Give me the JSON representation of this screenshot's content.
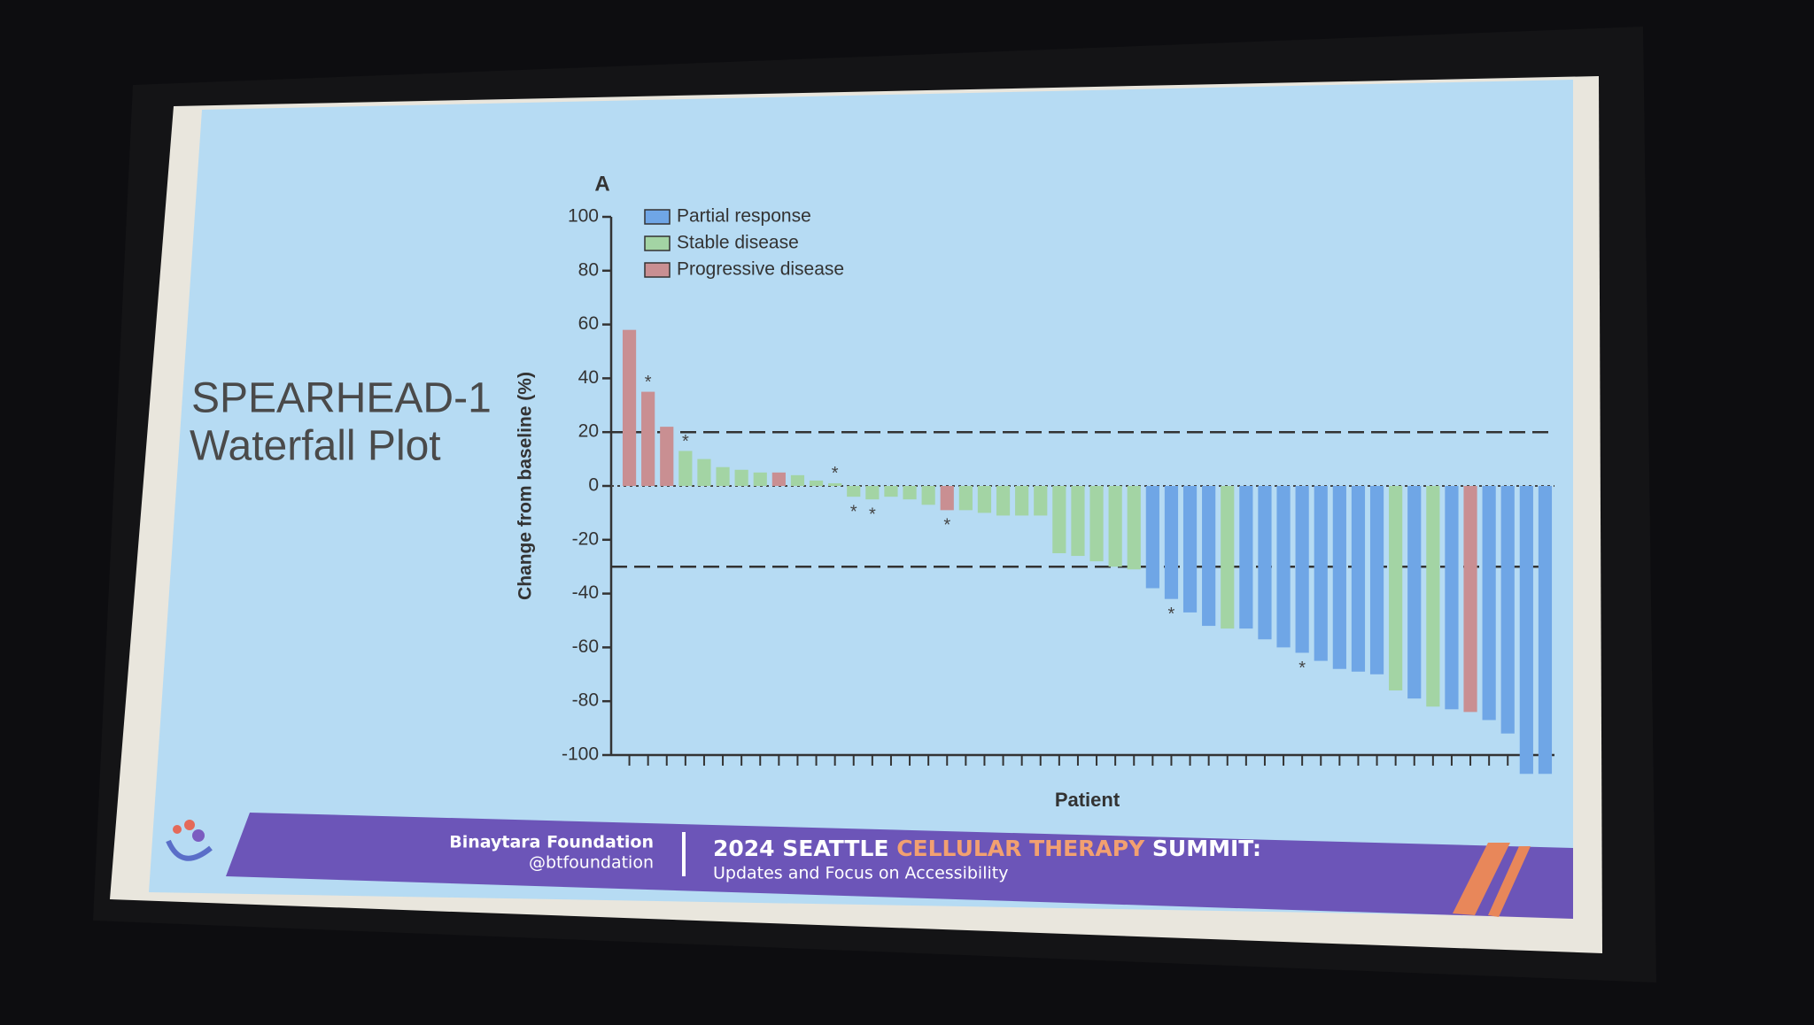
{
  "slide": {
    "title_line1": "SPEARHEAD-1",
    "title_line2": "Waterfall Plot",
    "footer": {
      "org": "Binaytara Foundation",
      "handle": "@btfoundation",
      "event_part1": "2024 SEATTLE",
      "event_part2": "CELLULAR THERAPY",
      "event_part3": "SUMMIT:",
      "event_subtitle": "Updates and Focus on Accessibility"
    }
  },
  "chart_data": {
    "type": "bar",
    "panel_label": "A",
    "ylabel": "Change from baseline (%)",
    "xlabel": "Patient",
    "categories": [
      null,
      null,
      null,
      null,
      null,
      null,
      null,
      null,
      null,
      null,
      null,
      null,
      null,
      null,
      null,
      null,
      null,
      null,
      null,
      null,
      null,
      null,
      null,
      null,
      null,
      null,
      null,
      null,
      null,
      null,
      null,
      null,
      null,
      null,
      null,
      null,
      null,
      null,
      null,
      null,
      null,
      null,
      null,
      null,
      null,
      null,
      null,
      null,
      null,
      null
    ],
    "series": [
      {
        "name": "Partial response",
        "color": "#6fa6e6",
        "values": [
          null,
          null,
          null,
          null,
          null,
          null,
          null,
          null,
          null,
          null,
          null,
          null,
          null,
          null,
          null,
          null,
          null,
          null,
          null,
          null,
          null,
          null,
          null,
          null,
          null,
          null,
          null,
          null,
          -38,
          -42,
          -47,
          -52,
          null,
          -53,
          -57,
          -60,
          -62,
          -65,
          -68,
          -69,
          -70,
          null,
          -79,
          null,
          -83,
          null,
          -87,
          -92,
          -107,
          -107
        ]
      },
      {
        "name": "Stable disease",
        "color": "#a3d4a4",
        "values": [
          null,
          null,
          null,
          13,
          10,
          7,
          6,
          5,
          null,
          4,
          2,
          1,
          -4,
          -5,
          -4,
          -5,
          -7,
          null,
          -9,
          -10,
          -11,
          -11,
          -11,
          -25,
          -26,
          -28,
          -30,
          -31,
          null,
          null,
          null,
          null,
          -53,
          null,
          null,
          null,
          null,
          null,
          null,
          null,
          null,
          -76,
          null,
          -82,
          null,
          null,
          null,
          null,
          null,
          null
        ]
      },
      {
        "name": "Progressive disease",
        "color": "#c98f92",
        "values": [
          58,
          35,
          22,
          null,
          null,
          null,
          null,
          null,
          5,
          null,
          null,
          null,
          null,
          null,
          null,
          null,
          null,
          -9,
          null,
          null,
          null,
          null,
          null,
          null,
          null,
          null,
          null,
          null,
          null,
          null,
          null,
          null,
          null,
          null,
          null,
          null,
          null,
          null,
          null,
          null,
          null,
          null,
          null,
          null,
          null,
          -84,
          null,
          null,
          null,
          null
        ]
      }
    ],
    "annotations": [
      {
        "index": 1,
        "text": "*"
      },
      {
        "index": 3,
        "text": "*"
      },
      {
        "index": 11,
        "text": "*"
      },
      {
        "index": 12,
        "text": "*"
      },
      {
        "index": 13,
        "text": "*"
      },
      {
        "index": 17,
        "text": "*"
      },
      {
        "index": 29,
        "text": "*"
      },
      {
        "index": 36,
        "text": "*"
      }
    ],
    "reference_lines": [
      20,
      -30
    ],
    "ylim": [
      -100,
      100
    ],
    "yticks": [
      -100,
      -80,
      -60,
      -40,
      -20,
      0,
      20,
      40,
      60,
      80,
      100
    ],
    "legend": "top-left"
  }
}
